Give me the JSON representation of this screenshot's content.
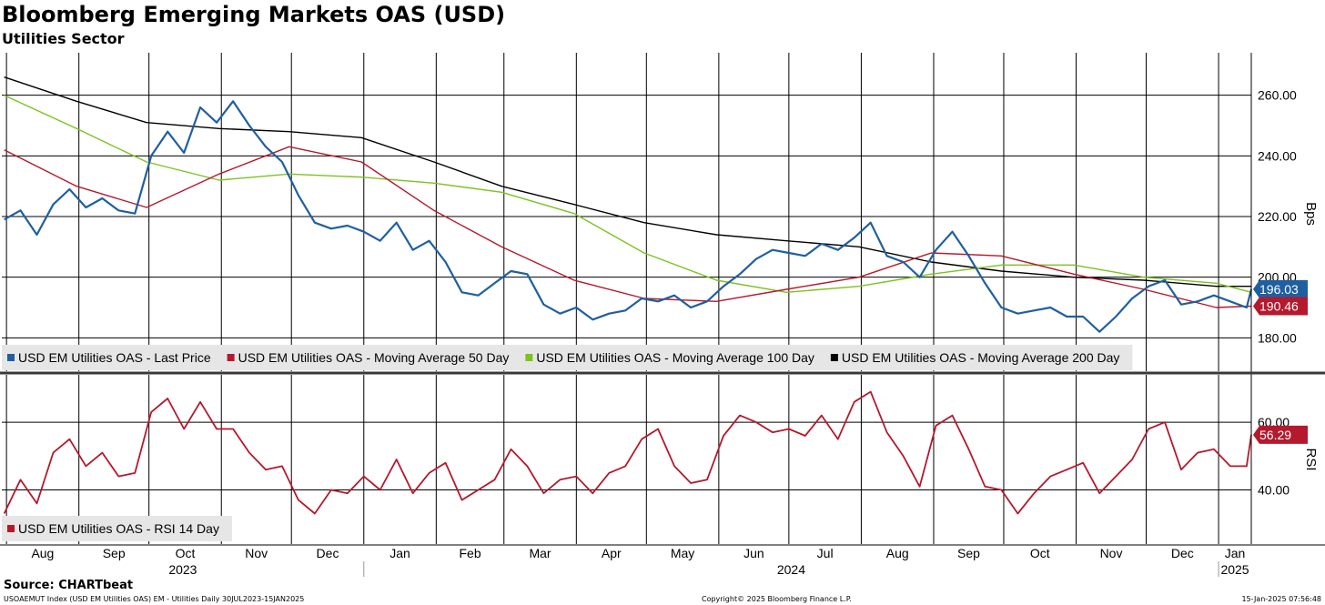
{
  "header": {
    "title": "Bloomberg Emerging Markets OAS (USD)",
    "subtitle": "Utilities Sector"
  },
  "footer": {
    "source": "Source: CHARTbeat",
    "index_info": "USOAEMUT Index (USD EM Utilities OAS) EM - Utilities  Daily 30JUL2023-15JAN2025",
    "copyright": "Copyright© 2025 Bloomberg Finance L.P.",
    "timestamp": "15-Jan-2025 07:56:48"
  },
  "colors": {
    "last_price": "#1f5fa0",
    "ma50": "#b4192d",
    "ma100": "#7cc220",
    "ma200": "#000000",
    "rsi": "#b4192d",
    "legend_bg": "#e6e6e6"
  },
  "chart_data": [
    {
      "type": "line",
      "panel": "price",
      "ylabel": "Bps",
      "ylim": [
        169,
        274
      ],
      "yticks": [
        180,
        200,
        220,
        240,
        260
      ],
      "ytick_labels": [
        "180.00",
        "200.00",
        "220.00",
        "240.00",
        "260.00"
      ],
      "grid": true,
      "legend_placement": "bottom-left",
      "x_range": [
        "2023-07-30",
        "2025-01-15"
      ],
      "series": [
        {
          "name": "USD EM Utilities OAS - Last Price",
          "color": "#1f5fa0",
          "last_label": "196.03",
          "points": [
            [
              "2023-07-31",
              219
            ],
            [
              "2023-08-07",
              222
            ],
            [
              "2023-08-14",
              214
            ],
            [
              "2023-08-21",
              224
            ],
            [
              "2023-08-28",
              229
            ],
            [
              "2023-09-04",
              223
            ],
            [
              "2023-09-11",
              226
            ],
            [
              "2023-09-18",
              222
            ],
            [
              "2023-09-25",
              221
            ],
            [
              "2023-10-02",
              240
            ],
            [
              "2023-10-09",
              248
            ],
            [
              "2023-10-16",
              241
            ],
            [
              "2023-10-23",
              256
            ],
            [
              "2023-10-30",
              251
            ],
            [
              "2023-11-06",
              258
            ],
            [
              "2023-11-13",
              250
            ],
            [
              "2023-11-20",
              243
            ],
            [
              "2023-11-27",
              238
            ],
            [
              "2023-12-04",
              227
            ],
            [
              "2023-12-11",
              218
            ],
            [
              "2023-12-18",
              216
            ],
            [
              "2023-12-25",
              217
            ],
            [
              "2024-01-01",
              215
            ],
            [
              "2024-01-08",
              212
            ],
            [
              "2024-01-15",
              218
            ],
            [
              "2024-01-22",
              209
            ],
            [
              "2024-01-29",
              212
            ],
            [
              "2024-02-05",
              205
            ],
            [
              "2024-02-12",
              195
            ],
            [
              "2024-02-19",
              194
            ],
            [
              "2024-02-26",
              198
            ],
            [
              "2024-03-04",
              202
            ],
            [
              "2024-03-11",
              201
            ],
            [
              "2024-03-18",
              191
            ],
            [
              "2024-03-25",
              188
            ],
            [
              "2024-04-01",
              190
            ],
            [
              "2024-04-08",
              186
            ],
            [
              "2024-04-15",
              188
            ],
            [
              "2024-04-22",
              189
            ],
            [
              "2024-04-29",
              193
            ],
            [
              "2024-05-06",
              192
            ],
            [
              "2024-05-13",
              194
            ],
            [
              "2024-05-20",
              190
            ],
            [
              "2024-05-27",
              192
            ],
            [
              "2024-06-03",
              197
            ],
            [
              "2024-06-10",
              201
            ],
            [
              "2024-06-17",
              206
            ],
            [
              "2024-06-24",
              209
            ],
            [
              "2024-07-01",
              208
            ],
            [
              "2024-07-08",
              207
            ],
            [
              "2024-07-15",
              211
            ],
            [
              "2024-07-22",
              209
            ],
            [
              "2024-07-29",
              213
            ],
            [
              "2024-08-05",
              218
            ],
            [
              "2024-08-12",
              207
            ],
            [
              "2024-08-19",
              205
            ],
            [
              "2024-08-26",
              200
            ],
            [
              "2024-09-02",
              209
            ],
            [
              "2024-09-09",
              215
            ],
            [
              "2024-09-16",
              207
            ],
            [
              "2024-09-23",
              198
            ],
            [
              "2024-09-30",
              190
            ],
            [
              "2024-10-07",
              188
            ],
            [
              "2024-10-14",
              189
            ],
            [
              "2024-10-21",
              190
            ],
            [
              "2024-10-28",
              187
            ],
            [
              "2024-11-04",
              187
            ],
            [
              "2024-11-11",
              182
            ],
            [
              "2024-11-18",
              187
            ],
            [
              "2024-11-25",
              193
            ],
            [
              "2024-12-02",
              197
            ],
            [
              "2024-12-09",
              199
            ],
            [
              "2024-12-16",
              191
            ],
            [
              "2024-12-23",
              192
            ],
            [
              "2024-12-30",
              194
            ],
            [
              "2025-01-06",
              192
            ],
            [
              "2025-01-13",
              190
            ],
            [
              "2025-01-15",
              196.03
            ]
          ]
        },
        {
          "name": "USD EM Utilities OAS - Moving Average 50 Day",
          "color": "#b4192d",
          "last_label": "190.46",
          "points": [
            [
              "2023-07-31",
              242
            ],
            [
              "2023-08-31",
              230
            ],
            [
              "2023-09-30",
              223
            ],
            [
              "2023-10-31",
              234
            ],
            [
              "2023-11-30",
              243
            ],
            [
              "2023-12-31",
              238
            ],
            [
              "2024-01-31",
              222
            ],
            [
              "2024-02-29",
              210
            ],
            [
              "2024-03-31",
              199
            ],
            [
              "2024-04-30",
              193
            ],
            [
              "2024-05-31",
              192
            ],
            [
              "2024-06-30",
              196
            ],
            [
              "2024-07-31",
              200
            ],
            [
              "2024-08-31",
              208
            ],
            [
              "2024-09-30",
              207
            ],
            [
              "2024-10-31",
              201
            ],
            [
              "2024-11-30",
              196
            ],
            [
              "2024-12-31",
              190
            ],
            [
              "2025-01-15",
              190.46
            ]
          ]
        },
        {
          "name": "USD EM Utilities OAS - Moving Average 100 Day",
          "color": "#7cc220",
          "points": [
            [
              "2023-07-31",
              260
            ],
            [
              "2023-08-31",
              249
            ],
            [
              "2023-09-30",
              238
            ],
            [
              "2023-10-31",
              232
            ],
            [
              "2023-11-30",
              234
            ],
            [
              "2023-12-31",
              233
            ],
            [
              "2024-01-31",
              231
            ],
            [
              "2024-02-29",
              228
            ],
            [
              "2024-03-31",
              221
            ],
            [
              "2024-04-30",
              208
            ],
            [
              "2024-05-31",
              199
            ],
            [
              "2024-06-30",
              195
            ],
            [
              "2024-07-31",
              197
            ],
            [
              "2024-08-31",
              201
            ],
            [
              "2024-09-30",
              204
            ],
            [
              "2024-10-31",
              204
            ],
            [
              "2024-11-30",
              200
            ],
            [
              "2024-12-31",
              198
            ],
            [
              "2025-01-15",
              195
            ]
          ]
        },
        {
          "name": "USD EM Utilities OAS - Moving Average 200 Day",
          "color": "#000000",
          "points": [
            [
              "2023-07-31",
              266
            ],
            [
              "2023-08-31",
              258
            ],
            [
              "2023-09-30",
              251
            ],
            [
              "2023-10-31",
              249
            ],
            [
              "2023-11-30",
              248
            ],
            [
              "2023-12-31",
              246
            ],
            [
              "2024-01-31",
              238
            ],
            [
              "2024-02-29",
              230
            ],
            [
              "2024-03-31",
              224
            ],
            [
              "2024-04-30",
              218
            ],
            [
              "2024-05-31",
              214
            ],
            [
              "2024-06-30",
              212
            ],
            [
              "2024-07-31",
              210
            ],
            [
              "2024-08-31",
              205
            ],
            [
              "2024-09-30",
              202
            ],
            [
              "2024-10-31",
              200
            ],
            [
              "2024-11-30",
              199
            ],
            [
              "2024-12-31",
              197
            ],
            [
              "2025-01-15",
              197
            ]
          ]
        }
      ]
    },
    {
      "type": "line",
      "panel": "rsi",
      "ylabel": "RSI",
      "ylim": [
        24,
        74
      ],
      "yticks": [
        40,
        60
      ],
      "ytick_labels": [
        "40.00",
        "60.00"
      ],
      "grid": true,
      "legend_placement": "bottom-left",
      "x_range": [
        "2023-07-30",
        "2025-01-15"
      ],
      "series": [
        {
          "name": "USD EM Utilities OAS - RSI 14 Day",
          "color": "#b4192d",
          "last_label": "56.29",
          "points": [
            [
              "2023-07-31",
              33
            ],
            [
              "2023-08-07",
              43
            ],
            [
              "2023-08-14",
              36
            ],
            [
              "2023-08-21",
              51
            ],
            [
              "2023-08-28",
              55
            ],
            [
              "2023-09-04",
              47
            ],
            [
              "2023-09-11",
              51
            ],
            [
              "2023-09-18",
              44
            ],
            [
              "2023-09-25",
              45
            ],
            [
              "2023-10-02",
              63
            ],
            [
              "2023-10-09",
              67
            ],
            [
              "2023-10-16",
              58
            ],
            [
              "2023-10-23",
              66
            ],
            [
              "2023-10-30",
              58
            ],
            [
              "2023-11-06",
              58
            ],
            [
              "2023-11-13",
              51
            ],
            [
              "2023-11-20",
              46
            ],
            [
              "2023-11-27",
              47
            ],
            [
              "2023-12-04",
              37
            ],
            [
              "2023-12-11",
              33
            ],
            [
              "2023-12-18",
              40
            ],
            [
              "2023-12-25",
              39
            ],
            [
              "2024-01-01",
              44
            ],
            [
              "2024-01-08",
              40
            ],
            [
              "2024-01-15",
              49
            ],
            [
              "2024-01-22",
              39
            ],
            [
              "2024-01-29",
              45
            ],
            [
              "2024-02-05",
              48
            ],
            [
              "2024-02-12",
              37
            ],
            [
              "2024-02-19",
              40
            ],
            [
              "2024-02-26",
              43
            ],
            [
              "2024-03-04",
              52
            ],
            [
              "2024-03-11",
              47
            ],
            [
              "2024-03-18",
              39
            ],
            [
              "2024-03-25",
              43
            ],
            [
              "2024-04-01",
              44
            ],
            [
              "2024-04-08",
              39
            ],
            [
              "2024-04-15",
              45
            ],
            [
              "2024-04-22",
              47
            ],
            [
              "2024-04-29",
              55
            ],
            [
              "2024-05-06",
              58
            ],
            [
              "2024-05-13",
              47
            ],
            [
              "2024-05-20",
              42
            ],
            [
              "2024-05-27",
              43
            ],
            [
              "2024-06-03",
              56
            ],
            [
              "2024-06-10",
              62
            ],
            [
              "2024-06-17",
              60
            ],
            [
              "2024-06-24",
              57
            ],
            [
              "2024-07-01",
              58
            ],
            [
              "2024-07-08",
              56
            ],
            [
              "2024-07-15",
              62
            ],
            [
              "2024-07-22",
              55
            ],
            [
              "2024-07-29",
              66
            ],
            [
              "2024-08-05",
              69
            ],
            [
              "2024-08-12",
              57
            ],
            [
              "2024-08-19",
              50
            ],
            [
              "2024-08-26",
              41
            ],
            [
              "2024-09-02",
              59
            ],
            [
              "2024-09-09",
              62
            ],
            [
              "2024-09-16",
              52
            ],
            [
              "2024-09-23",
              41
            ],
            [
              "2024-09-30",
              40
            ],
            [
              "2024-10-07",
              33
            ],
            [
              "2024-10-14",
              39
            ],
            [
              "2024-10-21",
              44
            ],
            [
              "2024-10-28",
              46
            ],
            [
              "2024-11-04",
              48
            ],
            [
              "2024-11-11",
              39
            ],
            [
              "2024-11-18",
              44
            ],
            [
              "2024-11-25",
              49
            ],
            [
              "2024-12-02",
              58
            ],
            [
              "2024-12-09",
              60
            ],
            [
              "2024-12-16",
              46
            ],
            [
              "2024-12-23",
              51
            ],
            [
              "2024-12-30",
              52
            ],
            [
              "2025-01-06",
              47
            ],
            [
              "2025-01-13",
              47
            ],
            [
              "2025-01-15",
              56.29
            ]
          ]
        }
      ]
    }
  ],
  "x_axis": {
    "months": [
      "Aug",
      "Sep",
      "Oct",
      "Nov",
      "Dec",
      "Jan",
      "Feb",
      "Mar",
      "Apr",
      "May",
      "Jun",
      "Jul",
      "Aug",
      "Sep",
      "Oct",
      "Nov",
      "Dec",
      "Jan"
    ],
    "years": [
      "2023",
      "2024",
      "2025"
    ]
  }
}
